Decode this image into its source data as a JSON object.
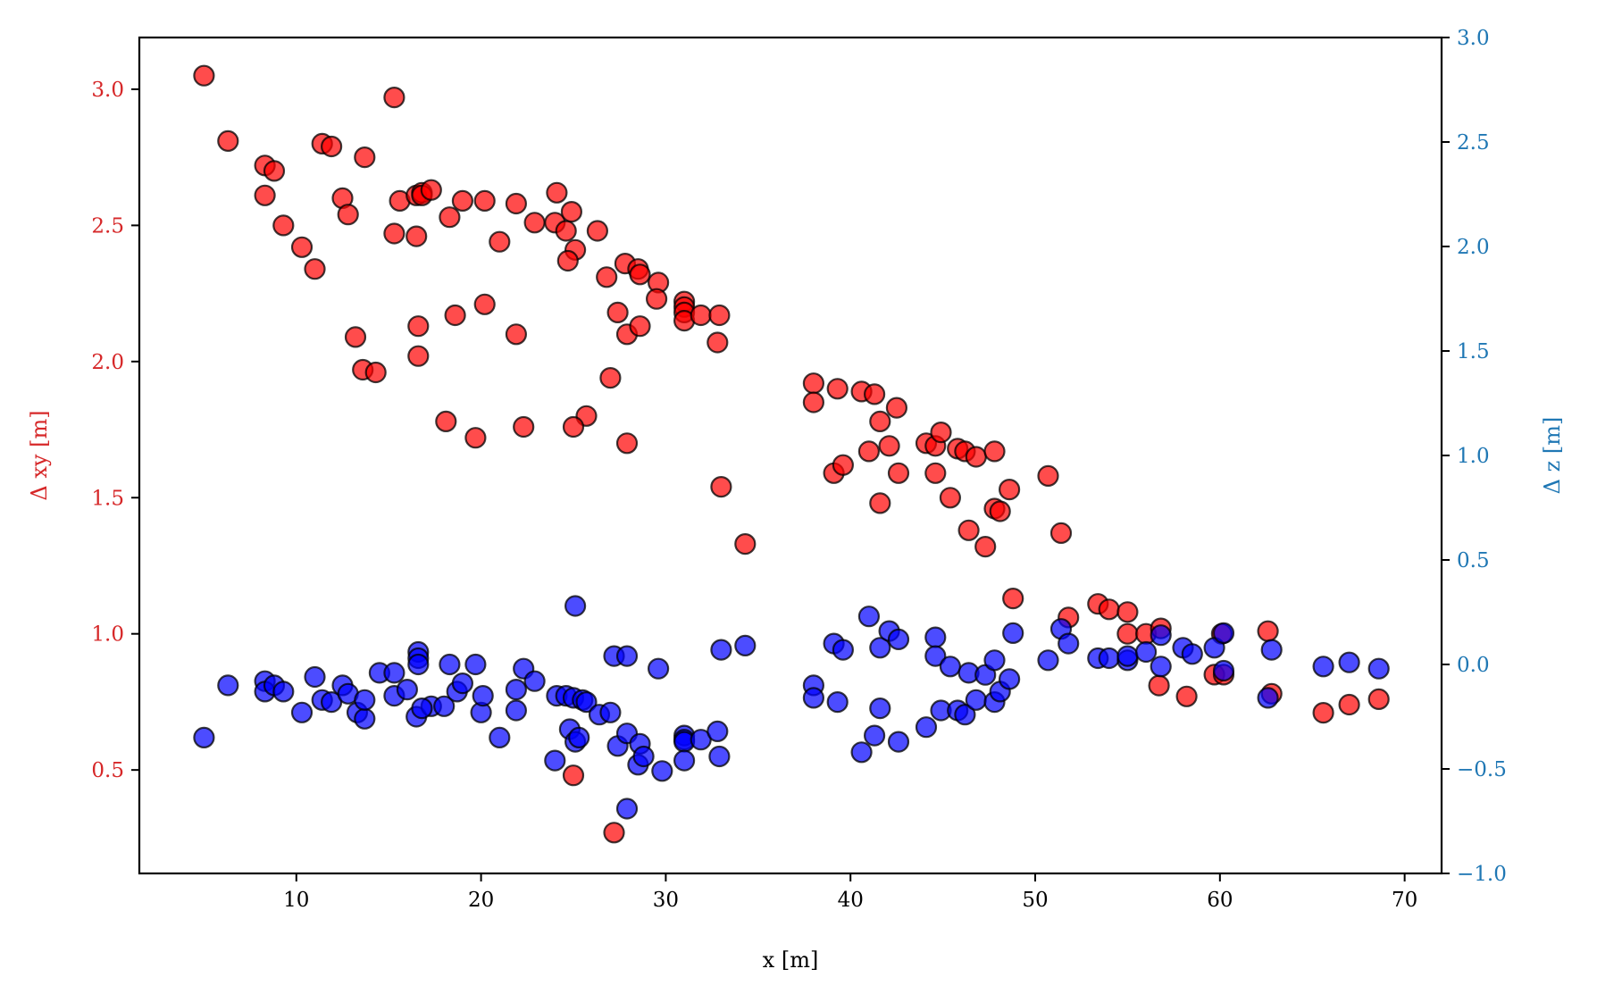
{
  "chart_data": {
    "type": "scatter",
    "title": "",
    "xlabel": "x [m]",
    "ylabel_left": "Δ xy [m]",
    "ylabel_right": "Δ z [m]",
    "xlim": [
      1.5,
      72
    ],
    "ylim_left": [
      0.12,
      3.19
    ],
    "ylim_right": [
      -1.0,
      3.0
    ],
    "xticks": [
      10,
      20,
      30,
      40,
      50,
      60,
      70
    ],
    "yticks_left": [
      0.5,
      1.0,
      1.5,
      2.0,
      2.5,
      3.0
    ],
    "yticks_right": [
      -1.0,
      -0.5,
      0.0,
      0.5,
      1.0,
      1.5,
      2.0,
      2.5,
      3.0
    ],
    "xtick_labels": [
      "10",
      "20",
      "30",
      "40",
      "50",
      "60",
      "70"
    ],
    "ytick_labels_left": [
      "0.5",
      "1.0",
      "1.5",
      "2.0",
      "2.5",
      "3.0"
    ],
    "ytick_labels_right": [
      "−1.0",
      "−0.5",
      "0.0",
      "0.5",
      "1.0",
      "1.5",
      "2.0",
      "2.5",
      "3.0"
    ],
    "grid": false,
    "left_axis_color": "#d62728",
    "right_axis_color": "#1f77b4",
    "series": [
      {
        "axis": "left",
        "color": "#ff0000",
        "points": [
          [
            5.0,
            3.05
          ],
          [
            6.3,
            2.81
          ],
          [
            8.3,
            2.72
          ],
          [
            8.8,
            2.7
          ],
          [
            8.3,
            2.61
          ],
          [
            9.3,
            2.5
          ],
          [
            10.3,
            2.42
          ],
          [
            11.0,
            2.34
          ],
          [
            11.4,
            2.8
          ],
          [
            11.9,
            2.79
          ],
          [
            13.7,
            2.75
          ],
          [
            12.5,
            2.6
          ],
          [
            12.8,
            2.54
          ],
          [
            15.3,
            2.97
          ],
          [
            15.6,
            2.59
          ],
          [
            16.5,
            2.61
          ],
          [
            16.8,
            2.62
          ],
          [
            16.8,
            2.61
          ],
          [
            17.3,
            2.63
          ],
          [
            15.3,
            2.47
          ],
          [
            16.5,
            2.46
          ],
          [
            18.3,
            2.53
          ],
          [
            19.0,
            2.59
          ],
          [
            20.2,
            2.59
          ],
          [
            21.0,
            2.44
          ],
          [
            21.9,
            2.58
          ],
          [
            22.9,
            2.51
          ],
          [
            24.0,
            2.51
          ],
          [
            24.1,
            2.62
          ],
          [
            24.6,
            2.48
          ],
          [
            24.9,
            2.55
          ],
          [
            25.1,
            2.41
          ],
          [
            24.7,
            2.37
          ],
          [
            26.3,
            2.48
          ],
          [
            26.8,
            2.31
          ],
          [
            27.8,
            2.36
          ],
          [
            28.5,
            2.34
          ],
          [
            28.6,
            2.32
          ],
          [
            29.6,
            2.29
          ],
          [
            29.5,
            2.23
          ],
          [
            31.0,
            2.22
          ],
          [
            31.0,
            2.2
          ],
          [
            31.0,
            2.18
          ],
          [
            31.0,
            2.15
          ],
          [
            31.9,
            2.17
          ],
          [
            32.9,
            2.17
          ],
          [
            32.8,
            2.07
          ],
          [
            27.4,
            2.18
          ],
          [
            27.9,
            2.1
          ],
          [
            28.6,
            2.13
          ],
          [
            13.2,
            2.09
          ],
          [
            13.6,
            1.97
          ],
          [
            14.3,
            1.96
          ],
          [
            16.6,
            2.13
          ],
          [
            16.6,
            2.02
          ],
          [
            18.6,
            2.17
          ],
          [
            20.2,
            2.21
          ],
          [
            21.9,
            2.1
          ],
          [
            18.1,
            1.78
          ],
          [
            19.7,
            1.72
          ],
          [
            22.3,
            1.76
          ],
          [
            25.7,
            1.8
          ],
          [
            25.0,
            1.76
          ],
          [
            27.0,
            1.94
          ],
          [
            27.9,
            1.7
          ],
          [
            33.0,
            1.54
          ],
          [
            34.3,
            1.33
          ],
          [
            38.0,
            1.92
          ],
          [
            38.0,
            1.85
          ],
          [
            39.3,
            1.9
          ],
          [
            40.6,
            1.89
          ],
          [
            41.3,
            1.88
          ],
          [
            42.5,
            1.83
          ],
          [
            41.6,
            1.78
          ],
          [
            39.1,
            1.59
          ],
          [
            39.6,
            1.62
          ],
          [
            41.0,
            1.67
          ],
          [
            42.1,
            1.69
          ],
          [
            42.6,
            1.59
          ],
          [
            41.6,
            1.48
          ],
          [
            44.1,
            1.7
          ],
          [
            44.6,
            1.69
          ],
          [
            44.9,
            1.74
          ],
          [
            45.8,
            1.68
          ],
          [
            46.2,
            1.67
          ],
          [
            46.8,
            1.65
          ],
          [
            47.8,
            1.67
          ],
          [
            44.6,
            1.59
          ],
          [
            45.4,
            1.5
          ],
          [
            46.4,
            1.38
          ],
          [
            47.3,
            1.32
          ],
          [
            47.8,
            1.46
          ],
          [
            48.1,
            1.45
          ],
          [
            48.6,
            1.53
          ],
          [
            50.7,
            1.58
          ],
          [
            51.4,
            1.37
          ],
          [
            48.8,
            1.13
          ],
          [
            51.8,
            1.06
          ],
          [
            53.4,
            1.11
          ],
          [
            54.0,
            1.09
          ],
          [
            55.0,
            1.08
          ],
          [
            55.0,
            1.0
          ],
          [
            56.0,
            1.0
          ],
          [
            56.8,
            1.02
          ],
          [
            56.7,
            0.81
          ],
          [
            58.2,
            0.77
          ],
          [
            59.7,
            0.85
          ],
          [
            60.2,
            0.85
          ],
          [
            60.1,
            1.0
          ],
          [
            62.6,
            1.01
          ],
          [
            62.8,
            0.78
          ],
          [
            65.6,
            0.71
          ],
          [
            67.0,
            0.74
          ],
          [
            68.6,
            0.76
          ],
          [
            25.0,
            0.48
          ],
          [
            27.2,
            0.27
          ]
        ]
      },
      {
        "axis": "right",
        "color": "#0000ff",
        "points": [
          [
            5.0,
            -0.35
          ],
          [
            6.3,
            -0.1
          ],
          [
            8.3,
            -0.08
          ],
          [
            8.3,
            -0.13
          ],
          [
            8.8,
            -0.1
          ],
          [
            9.3,
            -0.13
          ],
          [
            10.3,
            -0.23
          ],
          [
            11.0,
            -0.06
          ],
          [
            11.4,
            -0.17
          ],
          [
            11.9,
            -0.18
          ],
          [
            12.5,
            -0.1
          ],
          [
            12.8,
            -0.14
          ],
          [
            13.3,
            -0.23
          ],
          [
            13.7,
            -0.26
          ],
          [
            13.7,
            -0.17
          ],
          [
            14.5,
            -0.04
          ],
          [
            15.3,
            -0.04
          ],
          [
            15.3,
            -0.15
          ],
          [
            16.0,
            -0.12
          ],
          [
            16.5,
            -0.25
          ],
          [
            16.6,
            0.06
          ],
          [
            16.6,
            0.03
          ],
          [
            16.6,
            0.0
          ],
          [
            17.3,
            -0.2
          ],
          [
            16.8,
            -0.21
          ],
          [
            18.0,
            -0.2
          ],
          [
            18.3,
            0.0
          ],
          [
            18.7,
            -0.13
          ],
          [
            19.0,
            -0.09
          ],
          [
            19.7,
            0.0
          ],
          [
            20.0,
            -0.23
          ],
          [
            20.1,
            -0.15
          ],
          [
            21.0,
            -0.35
          ],
          [
            21.9,
            -0.12
          ],
          [
            21.9,
            -0.22
          ],
          [
            22.3,
            -0.02
          ],
          [
            22.9,
            -0.08
          ],
          [
            24.0,
            -0.46
          ],
          [
            24.1,
            -0.15
          ],
          [
            24.6,
            -0.15
          ],
          [
            24.8,
            -0.31
          ],
          [
            25.0,
            -0.16
          ],
          [
            25.1,
            -0.37
          ],
          [
            25.1,
            0.28
          ],
          [
            25.3,
            -0.35
          ],
          [
            25.5,
            -0.17
          ],
          [
            25.7,
            -0.18
          ],
          [
            26.4,
            -0.24
          ],
          [
            27.0,
            -0.23
          ],
          [
            27.4,
            -0.39
          ],
          [
            27.2,
            0.04
          ],
          [
            27.9,
            0.04
          ],
          [
            27.9,
            -0.33
          ],
          [
            28.5,
            -0.48
          ],
          [
            28.6,
            -0.38
          ],
          [
            28.8,
            -0.44
          ],
          [
            29.6,
            -0.02
          ],
          [
            29.8,
            -0.51
          ],
          [
            31.0,
            -0.34
          ],
          [
            31.0,
            -0.36
          ],
          [
            31.0,
            -0.37
          ],
          [
            31.0,
            -0.46
          ],
          [
            31.9,
            -0.36
          ],
          [
            32.8,
            -0.32
          ],
          [
            32.9,
            -0.44
          ],
          [
            33.0,
            0.07
          ],
          [
            34.3,
            0.09
          ],
          [
            27.9,
            -0.69
          ],
          [
            38.0,
            -0.1
          ],
          [
            38.0,
            -0.16
          ],
          [
            39.1,
            0.1
          ],
          [
            39.6,
            0.07
          ],
          [
            39.3,
            -0.18
          ],
          [
            40.6,
            -0.42
          ],
          [
            41.0,
            0.23
          ],
          [
            41.3,
            -0.34
          ],
          [
            41.6,
            0.08
          ],
          [
            41.6,
            -0.21
          ],
          [
            42.1,
            0.16
          ],
          [
            42.6,
            0.12
          ],
          [
            42.6,
            -0.37
          ],
          [
            44.1,
            -0.3
          ],
          [
            44.6,
            0.13
          ],
          [
            44.6,
            0.04
          ],
          [
            44.9,
            -0.22
          ],
          [
            45.4,
            -0.01
          ],
          [
            45.8,
            -0.22
          ],
          [
            46.2,
            -0.24
          ],
          [
            46.4,
            -0.04
          ],
          [
            46.8,
            -0.17
          ],
          [
            47.3,
            -0.05
          ],
          [
            47.8,
            -0.18
          ],
          [
            47.8,
            0.02
          ],
          [
            48.1,
            -0.13
          ],
          [
            48.6,
            -0.07
          ],
          [
            48.8,
            0.15
          ],
          [
            50.7,
            0.02
          ],
          [
            51.4,
            0.17
          ],
          [
            51.8,
            0.1
          ],
          [
            53.4,
            0.03
          ],
          [
            54.0,
            0.03
          ],
          [
            55.0,
            0.02
          ],
          [
            55.0,
            0.04
          ],
          [
            56.0,
            0.06
          ],
          [
            56.8,
            0.14
          ],
          [
            56.8,
            -0.01
          ],
          [
            58.0,
            0.08
          ],
          [
            58.5,
            0.05
          ],
          [
            59.7,
            0.08
          ],
          [
            60.2,
            0.15
          ],
          [
            60.2,
            -0.03
          ],
          [
            62.6,
            -0.16
          ],
          [
            62.8,
            0.07
          ],
          [
            65.6,
            -0.01
          ],
          [
            67.0,
            0.01
          ],
          [
            68.6,
            -0.02
          ]
        ]
      }
    ]
  }
}
